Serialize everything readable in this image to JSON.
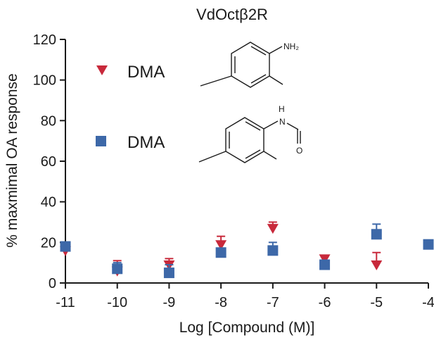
{
  "chart_data": {
    "type": "scatter",
    "title": "VdOctβ2R",
    "xlabel": "Log [Compound (M)]",
    "ylabel": "% maxmimal OA response",
    "xlim": [
      -11,
      -4
    ],
    "ylim": [
      0,
      120
    ],
    "x_ticks": [
      "-11",
      "-10",
      "-9",
      "-8",
      "-7",
      "-6",
      "-5",
      "-4"
    ],
    "y_ticks": [
      "0",
      "20",
      "40",
      "60",
      "80",
      "100",
      "120"
    ],
    "grid": false,
    "legend_position": "top-left",
    "series": [
      {
        "name": "DMA",
        "marker": "triangle-down",
        "color": "#c8293b",
        "points": [
          {
            "x": -11,
            "y": 16,
            "err": 3
          },
          {
            "x": -10,
            "y": 6,
            "err": 5
          },
          {
            "x": -9,
            "y": 9,
            "err": 3
          },
          {
            "x": -8,
            "y": 19,
            "err": 4
          },
          {
            "x": -7,
            "y": 27,
            "err": 3
          },
          {
            "x": -6,
            "y": 12,
            "err": 1
          },
          {
            "x": -5,
            "y": 9,
            "err": 6
          }
        ]
      },
      {
        "name": "DMA",
        "marker": "square",
        "color": "#3d68a8",
        "points": [
          {
            "x": -11,
            "y": 18,
            "err": 2
          },
          {
            "x": -10,
            "y": 7,
            "err": 3
          },
          {
            "x": -9,
            "y": 5,
            "err": 4
          },
          {
            "x": -8,
            "y": 15,
            "err": 2
          },
          {
            "x": -7,
            "y": 16,
            "err": 4
          },
          {
            "x": -6,
            "y": 9,
            "err": 2
          },
          {
            "x": -5,
            "y": 24,
            "err": 5
          },
          {
            "x": -4,
            "y": 19,
            "err": 1
          }
        ]
      }
    ],
    "structures": {
      "amine_label": "NH₂",
      "amide_n_label": "N",
      "amide_h_label": "H",
      "amide_o_label": "O"
    }
  }
}
